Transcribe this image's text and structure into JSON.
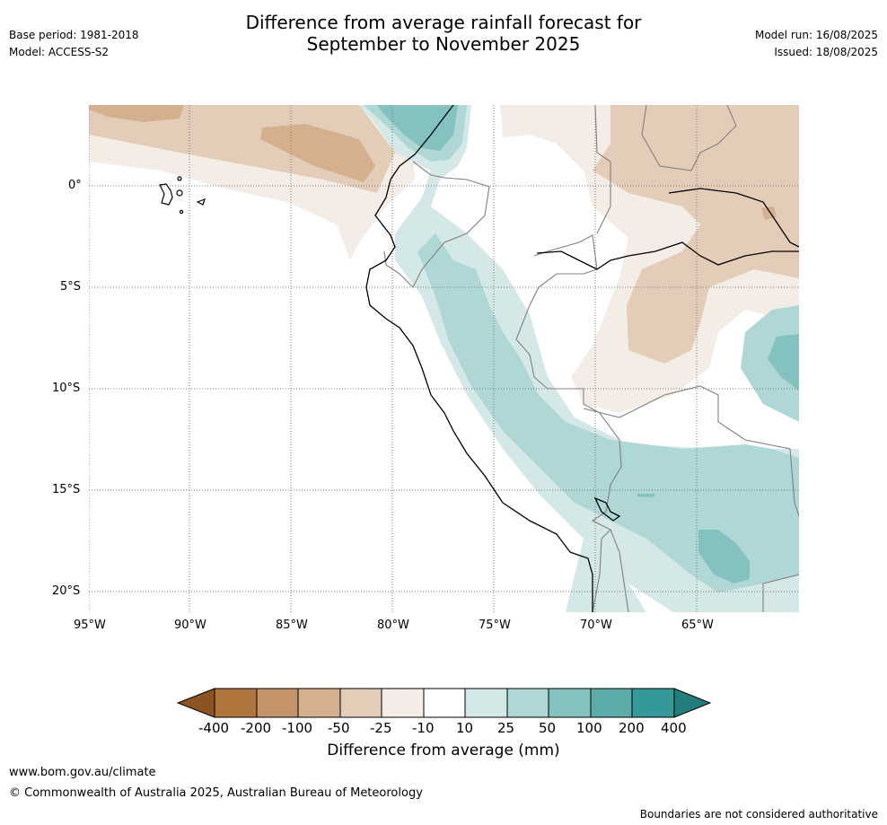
{
  "header": {
    "title_line1": "Difference from average rainfall forecast for",
    "title_line2": "September to November 2025",
    "base_period": "Base period: 1981-2018",
    "model": "Model: ACCESS-S2",
    "model_run": "Model run: 16/08/2025",
    "issued": "Issued: 18/08/2025"
  },
  "map": {
    "region": "Western South America",
    "lat_labels": [
      "0°",
      "5°S",
      "10°S",
      "15°S",
      "20°S"
    ],
    "lon_labels": [
      "95°W",
      "90°W",
      "85°W",
      "80°W",
      "75°W",
      "70°W",
      "65°W"
    ],
    "colors": {
      "neg400": "#8c5420",
      "neg200": "#ae753c",
      "neg100": "#c39468",
      "neg50": "#d4b08e",
      "neg25": "#e3cdb9",
      "neg10": "#f3ede6",
      "neutral": "#ffffff",
      "pos10": "#d4e9e7",
      "pos25": "#aed7d5",
      "pos50": "#83c2bf",
      "pos100": "#5cadaa",
      "pos200": "#35999a",
      "pos400": "#237d7c"
    }
  },
  "legend": {
    "tick_labels": [
      "-400",
      "-200",
      "-100",
      "-50",
      "-25",
      "-10",
      "10",
      "25",
      "50",
      "100",
      "200",
      "400"
    ],
    "title": "Difference from average (mm)"
  },
  "footer": {
    "website": "www.bom.gov.au/climate",
    "copyright": "© Commonwealth of Australia 2025, Australian Bureau of Meteorology",
    "disclaimer": "Boundaries are not considered authoritative"
  }
}
